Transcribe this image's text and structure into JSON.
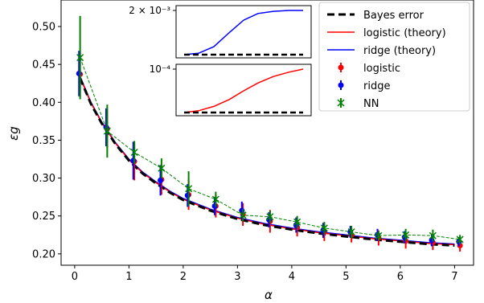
{
  "chart_data": [
    {
      "type": "line",
      "xlabel": "α",
      "ylabel": "εg",
      "xlim": [
        -0.25,
        7.35
      ],
      "ylim": [
        0.185,
        0.535
      ],
      "xticks": [
        0,
        1,
        2,
        3,
        4,
        5,
        6,
        7
      ],
      "xtick_labels": [
        "0",
        "1",
        "2",
        "3",
        "4",
        "5",
        "6",
        "7"
      ],
      "yticks": [
        0.2,
        0.25,
        0.3,
        0.35,
        0.4,
        0.45,
        0.5
      ],
      "ytick_labels": [
        "0.20",
        "0.25",
        "0.30",
        "0.35",
        "0.40",
        "0.45",
        "0.50"
      ],
      "grid": false,
      "legend_position": "top-right",
      "legend": [
        {
          "label": "Bayes error",
          "style": "dashed-line",
          "color": "#000000"
        },
        {
          "label": "logistic (theory)",
          "style": "line",
          "color": "#ff0000"
        },
        {
          "label": "ridge (theory)",
          "style": "line",
          "color": "#0000ff"
        },
        {
          "label": "logistic",
          "style": "dot-errorbar",
          "color": "#ff0000"
        },
        {
          "label": "ridge",
          "style": "dot-errorbar",
          "color": "#0000ff"
        },
        {
          "label": "NN",
          "style": "x-dashed",
          "color": "#008000"
        }
      ],
      "curves": {
        "x": [
          0.1,
          0.3,
          0.5,
          0.75,
          1.0,
          1.25,
          1.5,
          1.75,
          2.0,
          2.5,
          3.0,
          3.5,
          4.0,
          4.5,
          5.0,
          5.5,
          6.0,
          6.5,
          7.0
        ],
        "bayes": [
          0.432,
          0.398,
          0.372,
          0.345,
          0.323,
          0.306,
          0.293,
          0.281,
          0.271,
          0.257,
          0.246,
          0.238,
          0.232,
          0.227,
          0.223,
          0.219,
          0.216,
          0.213,
          0.211
        ],
        "logistic_theory": [
          0.433,
          0.399,
          0.373,
          0.346,
          0.324,
          0.307,
          0.294,
          0.282,
          0.272,
          0.258,
          0.247,
          0.239,
          0.233,
          0.228,
          0.224,
          0.22,
          0.217,
          0.214,
          0.212
        ],
        "ridge_theory": [
          0.434,
          0.4,
          0.374,
          0.347,
          0.325,
          0.308,
          0.295,
          0.283,
          0.273,
          0.259,
          0.248,
          0.24,
          0.234,
          0.229,
          0.225,
          0.221,
          0.218,
          0.215,
          0.213
        ]
      },
      "series": [
        {
          "name": "logistic",
          "color": "#ff0000",
          "x": [
            0.1,
            0.6,
            1.1,
            1.6,
            2.1,
            2.6,
            3.1,
            3.6,
            4.1,
            4.6,
            5.1,
            5.6,
            6.1,
            6.6,
            7.1
          ],
          "y": [
            0.437,
            0.365,
            0.322,
            0.298,
            0.278,
            0.263,
            0.252,
            0.243,
            0.235,
            0.229,
            0.225,
            0.221,
            0.217,
            0.215,
            0.211
          ],
          "err": [
            0.03,
            0.025,
            0.025,
            0.02,
            0.02,
            0.015,
            0.015,
            0.015,
            0.012,
            0.012,
            0.01,
            0.01,
            0.01,
            0.01,
            0.008
          ]
        },
        {
          "name": "ridge",
          "color": "#0000ff",
          "x": [
            0.08,
            0.58,
            1.08,
            1.58,
            2.08,
            2.58,
            3.08,
            3.58,
            4.08,
            4.58,
            5.08,
            5.58,
            6.08,
            6.58,
            7.08
          ],
          "y": [
            0.438,
            0.367,
            0.323,
            0.297,
            0.277,
            0.263,
            0.257,
            0.245,
            0.238,
            0.231,
            0.229,
            0.225,
            0.222,
            0.218,
            0.216
          ],
          "err": [
            0.03,
            0.025,
            0.025,
            0.02,
            0.015,
            0.012,
            0.012,
            0.01,
            0.01,
            0.01,
            0.008,
            0.008,
            0.008,
            0.008,
            0.006
          ]
        },
        {
          "name": "NN",
          "color": "#008000",
          "x": [
            0.1,
            0.6,
            1.1,
            1.6,
            2.1,
            2.6,
            3.1,
            3.6,
            4.1,
            4.6,
            5.1,
            5.6,
            6.1,
            6.6,
            7.1
          ],
          "y": [
            0.459,
            0.362,
            0.334,
            0.313,
            0.286,
            0.272,
            0.251,
            0.249,
            0.242,
            0.234,
            0.229,
            0.224,
            0.225,
            0.224,
            0.219
          ],
          "err": [
            0.055,
            0.035,
            0.015,
            0.013,
            0.023,
            0.01,
            0.008,
            0.008,
            0.008,
            0.008,
            0.008,
            0.006,
            0.008,
            0.008,
            0.006
          ]
        }
      ]
    },
    {
      "type": "line",
      "inset": "top",
      "ytick_labels": [
        "2 × 10⁻³"
      ],
      "series": [
        {
          "name": "ridge (theory)",
          "color": "#0000ff",
          "t": [
            0,
            0.12,
            0.25,
            0.38,
            0.5,
            0.62,
            0.75,
            0.88,
            1.0
          ],
          "y": [
            0.0,
            0.03,
            0.18,
            0.5,
            0.78,
            0.93,
            0.98,
            1.0,
            1.0
          ]
        },
        {
          "name": "Bayes error",
          "color": "#000000",
          "t": [
            0,
            1
          ],
          "y": [
            0,
            0
          ]
        }
      ]
    },
    {
      "type": "line",
      "inset": "bottom",
      "ytick_labels": [
        "10⁻⁴"
      ],
      "series": [
        {
          "name": "logistic (theory)",
          "color": "#ff0000",
          "t": [
            0,
            0.12,
            0.25,
            0.38,
            0.5,
            0.62,
            0.75,
            0.88,
            1.0
          ],
          "y": [
            0.0,
            0.04,
            0.14,
            0.3,
            0.5,
            0.68,
            0.83,
            0.93,
            1.0
          ]
        },
        {
          "name": "Bayes error",
          "color": "#000000",
          "t": [
            0,
            1
          ],
          "y": [
            0,
            0
          ]
        }
      ]
    }
  ]
}
